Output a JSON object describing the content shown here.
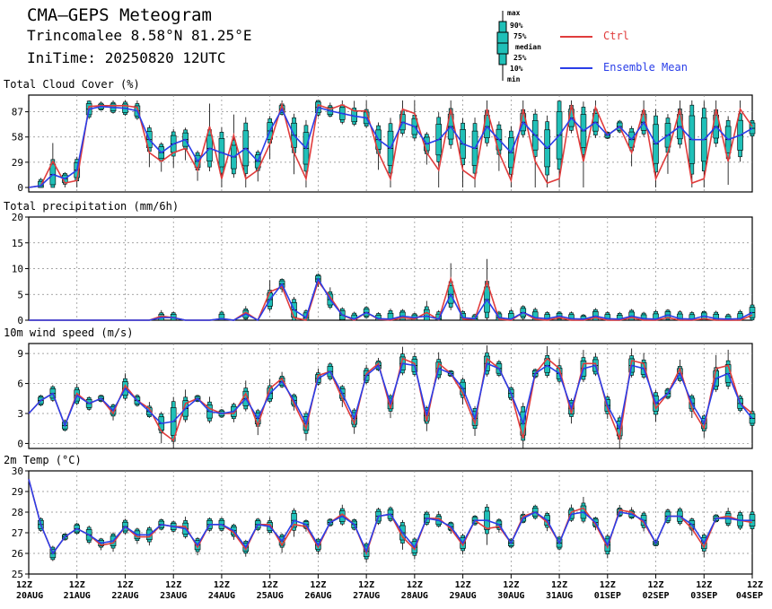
{
  "header": {
    "title": "CMA–GEPS Meteogram",
    "location": "Trincomalee 8.58°N 81.25°E",
    "init_time": "IniTime: 20250820 12UTC"
  },
  "legend": {
    "box_labels": [
      "max",
      "90%",
      "75%",
      "median",
      "25%",
      "10%",
      "min"
    ],
    "ctrl_label": "Ctrl",
    "mean_label": "Ensemble Mean",
    "ctrl_color": "#e03c3c",
    "mean_color": "#2a3ee8",
    "box_color": "#20c0b8"
  },
  "x_axis": {
    "tick_labels_top": [
      "12Z",
      "12Z",
      "12Z",
      "12Z",
      "12Z",
      "12Z",
      "12Z",
      "12Z",
      "12Z",
      "12Z",
      "12Z",
      "12Z",
      "12Z",
      "12Z",
      "12Z",
      "12Z"
    ],
    "tick_labels_bottom": [
      "20AUG",
      "21AUG",
      "22AUG",
      "23AUG",
      "24AUG",
      "25AUG",
      "26AUG",
      "27AUG",
      "28AUG",
      "29AUG",
      "30AUG",
      "31AUG",
      "01SEP",
      "02SEP",
      "03SEP",
      "04SEP"
    ]
  },
  "chart_data": [
    {
      "type": "line",
      "title": "Total Cloud Cover (%)",
      "x_unit": "hours since 20AUG 12Z",
      "x": [
        0,
        6,
        12,
        18,
        24,
        30,
        36,
        42,
        48,
        54,
        60,
        66,
        72,
        78,
        84,
        90,
        96,
        102,
        108,
        114,
        120,
        126,
        132,
        138,
        144,
        150,
        156,
        162,
        168,
        174,
        180,
        186,
        192,
        198,
        204,
        210,
        216,
        222,
        228,
        234,
        240,
        246,
        252,
        258,
        264,
        270,
        276,
        282,
        288,
        294,
        300,
        306,
        312,
        318,
        324,
        330,
        336,
        342,
        348,
        354,
        360
      ],
      "ylim": [
        0,
        100
      ],
      "yticks": [
        0,
        29,
        58,
        87
      ],
      "series": [
        {
          "name": "Ctrl",
          "values": [
            0,
            2,
            30,
            5,
            8,
            93,
            94,
            94,
            94,
            92,
            40,
            30,
            40,
            45,
            20,
            70,
            10,
            60,
            10,
            20,
            50,
            95,
            40,
            10,
            95,
            90,
            95,
            88,
            88,
            40,
            10,
            90,
            85,
            40,
            20,
            90,
            20,
            10,
            90,
            40,
            8,
            90,
            30,
            5,
            10,
            95,
            30,
            92,
            60,
            70,
            40,
            90,
            10,
            40,
            90,
            5,
            10,
            90,
            30,
            90,
            70
          ]
        },
        {
          "name": "Ensemble Mean",
          "values": [
            0,
            2,
            15,
            10,
            20,
            90,
            93,
            92,
            91,
            88,
            55,
            40,
            50,
            55,
            30,
            45,
            40,
            35,
            45,
            30,
            65,
            90,
            60,
            45,
            92,
            88,
            85,
            82,
            80,
            55,
            45,
            75,
            70,
            50,
            55,
            70,
            50,
            45,
            70,
            55,
            40,
            75,
            60,
            45,
            60,
            80,
            65,
            75,
            60,
            70,
            55,
            75,
            50,
            60,
            70,
            55,
            55,
            70,
            55,
            60,
            68
          ]
        }
      ]
    },
    {
      "type": "line",
      "title": "Total precipitation (mm/6h)",
      "x_unit": "hours since 20AUG 12Z",
      "x": [
        0,
        6,
        12,
        18,
        24,
        30,
        36,
        42,
        48,
        54,
        60,
        66,
        72,
        78,
        84,
        90,
        96,
        102,
        108,
        114,
        120,
        126,
        132,
        138,
        144,
        150,
        156,
        162,
        168,
        174,
        180,
        186,
        192,
        198,
        204,
        210,
        216,
        222,
        228,
        234,
        240,
        246,
        252,
        258,
        264,
        270,
        276,
        282,
        288,
        294,
        300,
        306,
        312,
        318,
        324,
        330,
        336,
        342,
        348,
        354,
        360
      ],
      "ylim": [
        0,
        20
      ],
      "yticks": [
        0,
        5,
        10,
        15,
        20
      ],
      "series": [
        {
          "name": "Ctrl",
          "values": [
            0,
            0,
            0,
            0,
            0,
            0,
            0,
            0,
            0,
            0,
            0,
            0.8,
            0.5,
            0,
            0,
            0,
            0.3,
            0,
            1.5,
            0,
            5.5,
            6.5,
            0.5,
            0,
            7.5,
            4.5,
            1,
            0,
            1.5,
            0.2,
            0,
            0.5,
            0.2,
            1.5,
            0.1,
            8,
            0.2,
            0.2,
            7.5,
            0.2,
            0,
            1.5,
            0.2,
            0,
            0.5,
            0,
            0,
            0.5,
            0,
            0,
            0.5,
            0,
            0,
            0.5,
            0,
            0,
            0.3,
            0,
            0,
            0,
            1
          ]
        },
        {
          "name": "Ensemble Mean",
          "values": [
            0,
            0,
            0,
            0,
            0,
            0,
            0,
            0,
            0,
            0,
            0,
            0.5,
            0.5,
            0,
            0,
            0,
            0.3,
            0,
            1.2,
            0,
            4,
            7,
            2,
            0.5,
            8,
            4,
            1,
            0.2,
            1.5,
            0.3,
            0.2,
            0.8,
            0.5,
            0.8,
            0.2,
            5,
            0.5,
            0.3,
            4,
            0.5,
            0.2,
            1.5,
            0.5,
            0.3,
            0.8,
            0.3,
            0.2,
            0.8,
            0.3,
            0.2,
            0.8,
            0.3,
            0.2,
            1,
            0.3,
            0.2,
            0.8,
            0.3,
            0.2,
            0.3,
            1.5
          ]
        }
      ]
    },
    {
      "type": "line",
      "title": "10m wind speed (m/s)",
      "x_unit": "hours since 20AUG 12Z",
      "x": [
        0,
        6,
        12,
        18,
        24,
        30,
        36,
        42,
        48,
        54,
        60,
        66,
        72,
        78,
        84,
        90,
        96,
        102,
        108,
        114,
        120,
        126,
        132,
        138,
        144,
        150,
        156,
        162,
        168,
        174,
        180,
        186,
        192,
        198,
        204,
        210,
        216,
        222,
        228,
        234,
        240,
        246,
        252,
        258,
        264,
        270,
        276,
        282,
        288,
        294,
        300,
        306,
        312,
        318,
        324,
        330,
        336,
        342,
        348,
        354,
        360
      ],
      "ylim": [
        -0.5,
        10
      ],
      "yticks": [
        0,
        3,
        6,
        9
      ],
      "series": [
        {
          "name": "Ctrl",
          "values": [
            3,
            4.3,
            5,
            1.8,
            5,
            4,
            4.5,
            3,
            5.8,
            4.3,
            3.5,
            1.2,
            0.3,
            4,
            4.5,
            3.5,
            3,
            3,
            5,
            1.8,
            5.5,
            6.5,
            4,
            1.5,
            6.8,
            7.2,
            4.5,
            2,
            7,
            8,
            3.5,
            8.5,
            8,
            2.2,
            8,
            7,
            5,
            2,
            8.5,
            7.5,
            5,
            0.5,
            7,
            8.5,
            7.5,
            3,
            8,
            8,
            3.5,
            0.5,
            8.3,
            8,
            3.5,
            5,
            7.5,
            3.5,
            1.5,
            7.5,
            7.8,
            4,
            3
          ]
        },
        {
          "name": "Ensemble Mean",
          "values": [
            3,
            4.3,
            5,
            1.8,
            4.8,
            4,
            4.5,
            3.3,
            5.5,
            4.3,
            3.2,
            2,
            2.2,
            3.5,
            4.5,
            3.2,
            3,
            3.2,
            4.5,
            2.5,
            5,
            6.2,
            4.3,
            2,
            6.5,
            7.2,
            5,
            2.5,
            6.8,
            7.8,
            4,
            8,
            7.8,
            2.8,
            7.5,
            7,
            5.5,
            2.5,
            8,
            7.5,
            5,
            2,
            7,
            7.8,
            7,
            3.5,
            7.5,
            7.8,
            3.8,
            1.5,
            7.8,
            7.5,
            4,
            5,
            7,
            4,
            2,
            6.5,
            7,
            4,
            2.5
          ]
        }
      ]
    },
    {
      "type": "line",
      "title": "2m Temp (°C)",
      "x_unit": "hours since 20AUG 12Z",
      "x": [
        0,
        6,
        12,
        18,
        24,
        30,
        36,
        42,
        48,
        54,
        60,
        66,
        72,
        78,
        84,
        90,
        96,
        102,
        108,
        114,
        120,
        126,
        132,
        138,
        144,
        150,
        156,
        162,
        168,
        174,
        180,
        186,
        192,
        198,
        204,
        210,
        216,
        222,
        228,
        234,
        240,
        246,
        252,
        258,
        264,
        270,
        276,
        282,
        288,
        294,
        300,
        306,
        312,
        318,
        324,
        330,
        336,
        342,
        348,
        354,
        360
      ],
      "ylim": [
        25,
        30
      ],
      "yticks": [
        25,
        26,
        27,
        28,
        29,
        30
      ],
      "series": [
        {
          "name": "Ctrl",
          "values": [
            29.6,
            27.4,
            26,
            26.8,
            27.2,
            26.9,
            26.4,
            26.5,
            27.3,
            26.8,
            26.8,
            27.4,
            27.3,
            27.3,
            26.3,
            27.4,
            27.4,
            27,
            26.2,
            27.4,
            27.4,
            26.4,
            27.4,
            27.3,
            26.3,
            27.5,
            27.9,
            27.4,
            26,
            27.8,
            27.9,
            26.8,
            26.2,
            27.7,
            27.7,
            27.2,
            26.4,
            27.6,
            27.2,
            27.3,
            26.5,
            27.8,
            28,
            27.5,
            26.5,
            28,
            28.2,
            27.4,
            26.3,
            28.1,
            28,
            27.5,
            26.5,
            27.8,
            27.8,
            27.2,
            26.3,
            27.7,
            27.8,
            27.6,
            27.5
          ]
        },
        {
          "name": "Ensemble Mean",
          "values": [
            29.6,
            27.4,
            26,
            26.8,
            27.2,
            26.9,
            26.5,
            26.6,
            27.3,
            26.9,
            26.9,
            27.4,
            27.3,
            27.2,
            26.4,
            27.4,
            27.4,
            27.1,
            26.3,
            27.4,
            27.3,
            26.6,
            27.6,
            27.4,
            26.4,
            27.5,
            27.8,
            27.4,
            26.1,
            27.8,
            27.9,
            27,
            26.3,
            27.7,
            27.6,
            27.3,
            26.5,
            27.6,
            27.6,
            27.4,
            26.5,
            27.7,
            28,
            27.6,
            26.5,
            27.9,
            28,
            27.5,
            26.4,
            28,
            27.9,
            27.6,
            26.5,
            27.8,
            27.8,
            27.4,
            26.5,
            27.7,
            27.7,
            27.6,
            27.6
          ]
        }
      ]
    }
  ]
}
